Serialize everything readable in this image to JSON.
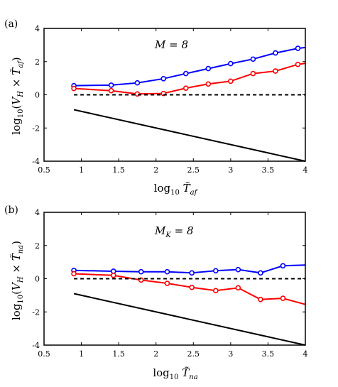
{
  "chart_data": [
    {
      "type": "line",
      "panel_label": "(a)",
      "annotation": "M = 8",
      "xlabel": "log10 T̃af",
      "ylabel": "log10(VH × T̃af)",
      "xlim": [
        0.5,
        4
      ],
      "ylim": [
        -4,
        4
      ],
      "xticks": [
        "0.5",
        "1",
        "1.5",
        "2",
        "2.5",
        "3",
        "3.5",
        "4"
      ],
      "yticks": [
        "-4",
        "-2",
        "0",
        "2",
        "4"
      ],
      "grid": false,
      "series": [
        {
          "color": "#0000ff",
          "markers": true,
          "x": [
            0.9,
            1.4,
            1.75,
            2.1,
            2.4,
            2.7,
            3.0,
            3.3,
            3.6,
            3.9,
            4.0
          ],
          "y": [
            0.55,
            0.58,
            0.72,
            0.97,
            1.28,
            1.58,
            1.88,
            2.15,
            2.52,
            2.8,
            2.85
          ]
        },
        {
          "color": "#ff0000",
          "markers": true,
          "x": [
            0.9,
            1.4,
            1.75,
            2.1,
            2.4,
            2.7,
            3.0,
            3.3,
            3.6,
            3.9,
            4.0
          ],
          "y": [
            0.38,
            0.25,
            0.05,
            0.08,
            0.4,
            0.65,
            0.82,
            1.28,
            1.43,
            1.83,
            1.9
          ]
        },
        {
          "color": "#000000",
          "dashed": true,
          "markers": false,
          "x": [
            0.9,
            4.0
          ],
          "y": [
            0,
            0
          ]
        },
        {
          "color": "#000000",
          "markers": false,
          "x": [
            0.9,
            4.0
          ],
          "y": [
            -0.9,
            -4.0
          ]
        }
      ]
    },
    {
      "type": "line",
      "panel_label": "(b)",
      "annotation": "MK = 8",
      "xlabel": "log10 T̃na",
      "ylabel": "log10(VH × T̃na)",
      "xlim": [
        0.5,
        4
      ],
      "ylim": [
        -4,
        4
      ],
      "xticks": [
        "0.5",
        "1",
        "1.5",
        "2",
        "2.5",
        "3",
        "3.5",
        "4"
      ],
      "yticks": [
        "-4",
        "-2",
        "0",
        "2",
        "4"
      ],
      "grid": false,
      "series": [
        {
          "color": "#0000ff",
          "markers": true,
          "x": [
            0.9,
            1.43,
            1.8,
            2.15,
            2.48,
            2.8,
            3.1,
            3.4,
            3.7,
            4.0
          ],
          "y": [
            0.5,
            0.45,
            0.42,
            0.42,
            0.35,
            0.48,
            0.55,
            0.35,
            0.78,
            0.82
          ]
        },
        {
          "color": "#ff0000",
          "markers": true,
          "x": [
            0.9,
            1.43,
            1.8,
            2.15,
            2.48,
            2.8,
            3.1,
            3.4,
            3.7,
            4.0
          ],
          "y": [
            0.3,
            0.2,
            -0.08,
            -0.28,
            -0.52,
            -0.72,
            -0.55,
            -1.25,
            -1.18,
            -1.55
          ]
        },
        {
          "color": "#000000",
          "dashed": true,
          "markers": false,
          "x": [
            0.9,
            4.0
          ],
          "y": [
            0,
            0
          ]
        },
        {
          "color": "#000000",
          "markers": false,
          "x": [
            0.9,
            4.0
          ],
          "y": [
            -0.9,
            -4.0
          ]
        }
      ]
    }
  ]
}
